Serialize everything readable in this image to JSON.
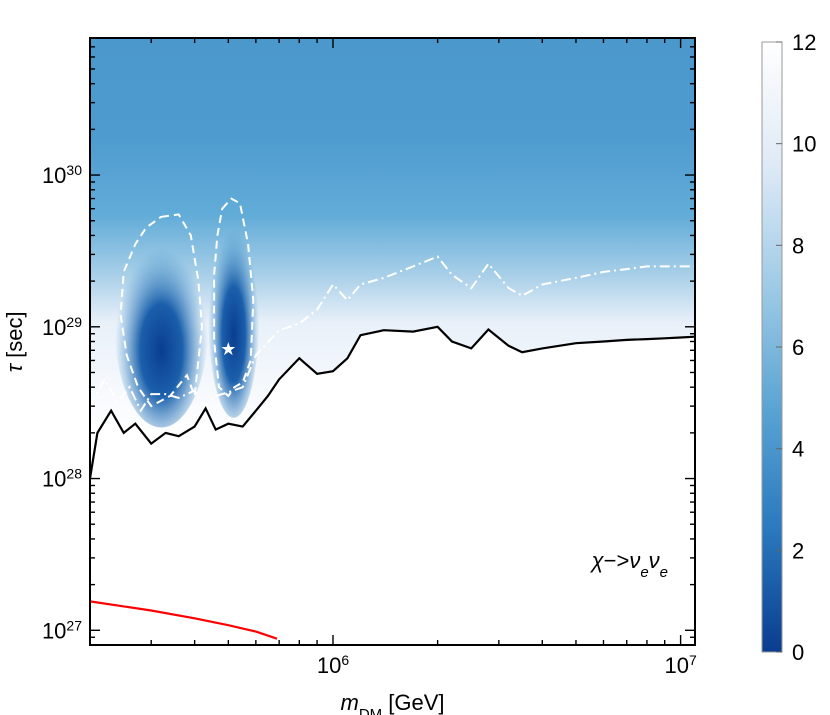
{
  "chart_data": {
    "type": "heatmap",
    "xlabel": {
      "main": "m",
      "sub": "DM",
      "unit": " [GeV]"
    },
    "ylabel": {
      "main": "τ",
      "unit": " [sec]"
    },
    "x_scale": "log",
    "y_scale": "log",
    "xlim": [
      200000,
      11000000
    ],
    "ylim": [
      8e+26,
      8e+30
    ],
    "x_ticks": [
      {
        "value": 1000000,
        "base": "10",
        "exp": "6"
      },
      {
        "value": 10000000,
        "base": "10",
        "exp": "7"
      }
    ],
    "y_ticks": [
      {
        "value": 1e+27,
        "base": "10",
        "exp": "27"
      },
      {
        "value": 1e+28,
        "base": "10",
        "exp": "28"
      },
      {
        "value": 1e+29,
        "base": "10",
        "exp": "29"
      },
      {
        "value": 1e+30,
        "base": "10",
        "exp": "30"
      }
    ],
    "colorbar": {
      "min": 0,
      "max": 12,
      "ticks": [
        "0",
        "2",
        "4",
        "6",
        "8",
        "10",
        "12"
      ],
      "colors": [
        "#0a3d8f",
        "#2a78be",
        "#5aa4d3",
        "#9fcbe6",
        "#dfeaf6",
        "#ffffff"
      ]
    },
    "annotation": {
      "chi": "χ",
      "arrow": "−>",
      "nu": "ν",
      "sub": "e"
    },
    "best_fit_point": {
      "x": 500000,
      "y": 7e+28
    },
    "solid_limit_curve": {
      "color": "#000000",
      "x": [
        200000,
        210000,
        230000,
        250000,
        270000,
        300000,
        330000,
        360000,
        400000,
        430000,
        460000,
        500000,
        550000,
        600000,
        650000,
        700000,
        800000,
        900000,
        1000000,
        1100000,
        1200000,
        1400000,
        1700000,
        2000000,
        2200000,
        2500000,
        2800000,
        3200000,
        3500000,
        4000000,
        5000000,
        6000000,
        7000000,
        8000000,
        9000000,
        10000000,
        11000000
      ],
      "y": [
        1e+28,
        2e+28,
        2.8e+28,
        2e+28,
        2.3e+28,
        1.7e+28,
        2e+28,
        1.9e+28,
        2.2e+28,
        2.9e+28,
        2.1e+28,
        2.3e+28,
        2.2e+28,
        2.8e+28,
        3.5e+28,
        4.5e+28,
        6.2e+28,
        4.9e+28,
        5.1e+28,
        6.2e+28,
        8.8e+28,
        9.5e+28,
        9.3e+28,
        1e+29,
        8e+28,
        7.2e+28,
        9.6e+28,
        7.5e+28,
        6.8e+28,
        7.2e+28,
        7.8e+28,
        8e+28,
        8.2e+28,
        8.3e+28,
        8.4e+28,
        8.5e+28,
        8.6e+28
      ]
    },
    "dashdot_curve": {
      "color": "#ffffff",
      "x": [
        200000,
        220000,
        240000,
        260000,
        280000,
        300000,
        330000,
        360000,
        400000,
        430000,
        460000,
        500000,
        550000,
        600000,
        700000,
        800000,
        900000,
        1000000,
        1100000,
        1200000,
        1400000,
        1700000,
        2000000,
        2200000,
        2500000,
        2800000,
        3200000,
        3500000,
        4000000,
        5000000,
        6000000,
        7000000,
        8000000,
        9000000,
        10000000,
        11000000
      ],
      "y": [
        3e+28,
        4.5e+28,
        3.2e+28,
        4e+28,
        2.8e+28,
        3.6e+28,
        3.6e+28,
        3.4e+28,
        3.8e+28,
        3e+28,
        3.5e+28,
        3.7e+28,
        4e+28,
        6.5e+28,
        9.5e+28,
        1.05e+29,
        1.3e+29,
        1.9e+29,
        1.5e+29,
        1.9e+29,
        2.1e+29,
        2.5e+29,
        2.9e+29,
        2.2e+29,
        1.8e+29,
        2.6e+29,
        1.8e+29,
        1.6e+29,
        1.9e+29,
        2.1e+29,
        2.3e+29,
        2.4e+29,
        2.5e+29,
        2.5e+29,
        2.5e+29,
        2.5e+29
      ]
    },
    "dashed_contours": [
      {
        "color": "#ffffff",
        "x": [
          320000,
          360000,
          390000,
          410000,
          420000,
          410000,
          400000,
          380000,
          340000,
          300000,
          275000,
          255000,
          245000,
          250000,
          270000,
          290000,
          320000
        ],
        "y": [
          5.3e+29,
          5.5e+29,
          4e+29,
          2e+29,
          1e+29,
          6e+28,
          3.5e+28,
          4.8e+28,
          3.5e+28,
          3e+28,
          4e+28,
          6.5e+28,
          1.2e+29,
          2.3e+29,
          3.5e+29,
          4.5e+29,
          5.3e+29
        ]
      },
      {
        "color": "#ffffff",
        "x": [
          480000,
          510000,
          540000,
          570000,
          590000,
          580000,
          550000,
          520000,
          500000,
          470000,
          455000,
          455000,
          465000,
          480000
        ],
        "y": [
          6e+29,
          7e+29,
          6.5e+29,
          3.5e+29,
          1.5e+29,
          6e+28,
          4.3e+28,
          4e+28,
          3.5e+28,
          4e+28,
          8e+28,
          2.2e+29,
          4e+29,
          6e+29
        ]
      }
    ],
    "unitarity_bound": {
      "color": "#ff0000",
      "x": [
        200000,
        300000,
        400000,
        500000,
        600000,
        690000
      ],
      "y": [
        1.55e+27,
        1.35e+27,
        1.2e+27,
        1.08e+27,
        9.8e+26,
        8.8e+26
      ]
    }
  }
}
